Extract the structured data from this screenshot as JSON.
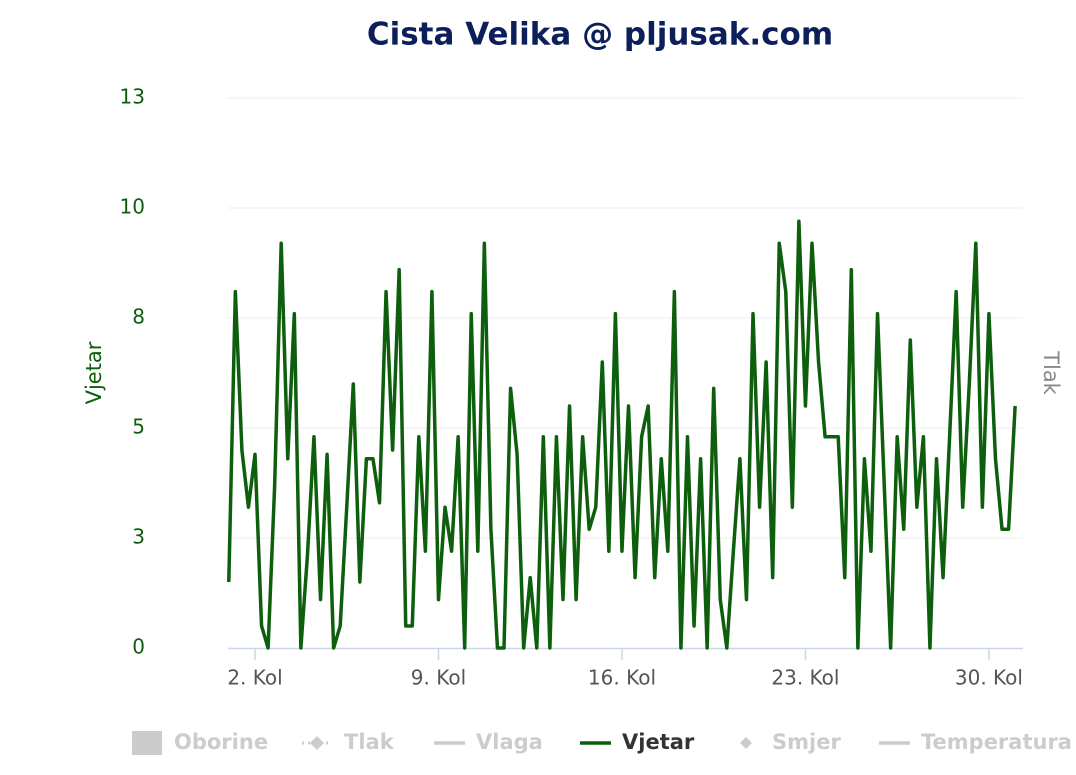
{
  "chart_data": {
    "type": "line",
    "title": "Cista Velika @ pljusak.com",
    "y_title": "Vjetar",
    "y2_title": "Tlak",
    "xlim": [
      0.97,
      31.3
    ],
    "xticks": [
      {
        "value": 2,
        "label": "2. Kol"
      },
      {
        "value": 9,
        "label": "9. Kol"
      },
      {
        "value": 16,
        "label": "16. Kol"
      },
      {
        "value": 23,
        "label": "23. Kol"
      },
      {
        "value": 30,
        "label": "30. Kol"
      }
    ],
    "ylim": [
      0,
      12.5
    ],
    "yticks": [
      0,
      {
        "value": 2.5,
        "label": "3"
      },
      5,
      {
        "value": 7.5,
        "label": "8"
      },
      10,
      {
        "value": 12.5,
        "label": "13"
      }
    ],
    "grid": true,
    "series": [
      {
        "name": "Oborine",
        "visible": false,
        "symbol": "square"
      },
      {
        "name": "Tlak",
        "visible": false,
        "symbol": "dash-diamond"
      },
      {
        "name": "Vlaga",
        "visible": false,
        "symbol": "line"
      },
      {
        "name": "Vjetar",
        "visible": true,
        "symbol": "line",
        "color": "#0d5f0d",
        "x": [
          1,
          1.25,
          1.5,
          1.75,
          2,
          2.25,
          2.5,
          2.75,
          3,
          3.25,
          3.5,
          3.75,
          4,
          4.25,
          4.5,
          4.75,
          5,
          5.25,
          5.5,
          5.75,
          6,
          6.25,
          6.5,
          6.75,
          7,
          7.25,
          7.5,
          7.75,
          8,
          8.25,
          8.5,
          8.75,
          9,
          9.25,
          9.5,
          9.75,
          10,
          10.25,
          10.5,
          10.75,
          11,
          11.25,
          11.5,
          11.75,
          12,
          12.25,
          12.5,
          12.75,
          13,
          13.25,
          13.5,
          13.75,
          14,
          14.25,
          14.5,
          14.75,
          15,
          15.25,
          15.5,
          15.75,
          16,
          16.25,
          16.5,
          16.75,
          17,
          17.25,
          17.5,
          17.75,
          18,
          18.25,
          18.5,
          18.75,
          19,
          19.25,
          19.5,
          19.75,
          20,
          20.25,
          20.5,
          20.75,
          21,
          21.25,
          21.5,
          21.75,
          22,
          22.25,
          22.5,
          22.75,
          23,
          23.25,
          23.5,
          23.75,
          24,
          24.25,
          24.5,
          24.75,
          25,
          25.25,
          25.5,
          25.75,
          26,
          26.25,
          26.5,
          26.75,
          27,
          27.25,
          27.5,
          27.75,
          28,
          28.25,
          28.5,
          28.75,
          29,
          29.25,
          29.5,
          29.75,
          30,
          30.25,
          30.5,
          30.75,
          31
        ],
        "values": [
          1.5,
          8.1,
          4.5,
          3.2,
          4.4,
          0.5,
          0,
          3.7,
          9.2,
          4.3,
          7.6,
          0,
          2.1,
          4.8,
          1.1,
          4.4,
          0,
          0.5,
          3.2,
          6,
          1.5,
          4.3,
          4.3,
          3.3,
          8.1,
          4.5,
          8.6,
          0.5,
          0.5,
          4.8,
          2.2,
          8.1,
          1.1,
          3.2,
          2.2,
          4.8,
          0,
          7.6,
          2.2,
          9.2,
          2.7,
          0,
          0,
          5.9,
          4.4,
          0,
          1.6,
          0,
          4.8,
          0,
          4.8,
          1.1,
          5.5,
          1.1,
          4.8,
          2.7,
          3.2,
          6.5,
          2.2,
          7.6,
          2.2,
          5.5,
          1.6,
          4.8,
          5.5,
          1.6,
          4.3,
          2.2,
          8.1,
          0,
          4.8,
          0.5,
          4.3,
          0,
          5.9,
          1.1,
          0,
          2.2,
          4.3,
          1.1,
          7.6,
          3.2,
          6.5,
          1.6,
          9.2,
          8.1,
          3.2,
          9.7,
          5.5,
          9.2,
          6.5,
          4.8,
          4.8,
          4.8,
          1.6,
          8.6,
          0,
          4.3,
          2.2,
          7.6,
          3.8,
          0,
          4.8,
          2.7,
          7,
          3.2,
          4.8,
          0,
          4.3,
          1.6,
          4.8,
          8.1,
          3.2,
          6,
          9.2,
          3.2,
          7.6,
          4.3,
          2.7,
          2.7,
          5.5
        ]
      },
      {
        "name": "Smjer",
        "visible": false,
        "symbol": "diamond"
      },
      {
        "name": "Temperatura",
        "visible": false,
        "symbol": "line"
      }
    ]
  }
}
